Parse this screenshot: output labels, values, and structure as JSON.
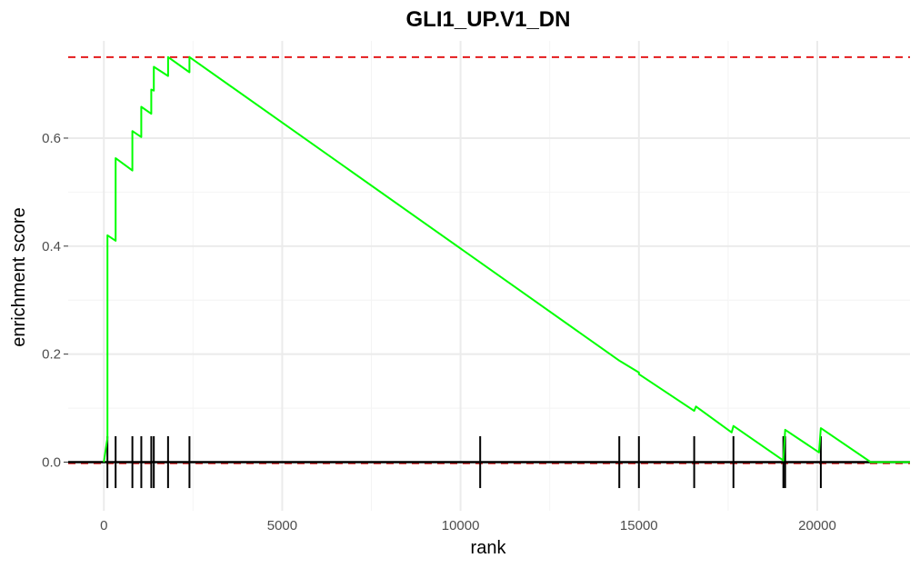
{
  "chart_data": {
    "type": "line",
    "title": "GLI1_UP.V1_DN",
    "xlabel": "rank",
    "ylabel": "enrichment score",
    "xlim": [
      -1000,
      22600
    ],
    "ylim": [
      -0.09,
      0.78
    ],
    "x_ticks": [
      0,
      5000,
      10000,
      15000,
      20000
    ],
    "x_tick_labels": [
      "0",
      "5000",
      "10000",
      "15000",
      "20000"
    ],
    "y_ticks": [
      0.0,
      0.2,
      0.4,
      0.6
    ],
    "y_tick_labels": [
      "0.0",
      "0.2",
      "0.4",
      "0.6"
    ],
    "grid": true,
    "colors": {
      "curve": "#00ff00",
      "reference_lines": "#e41a1c",
      "hits": "#000000",
      "zero_line": "#000000"
    },
    "reference_lines": {
      "max_es": 0.75,
      "min_es": -0.002
    },
    "series": [
      {
        "x": [
          0,
          100,
          100,
          330,
          330,
          800,
          800,
          1050,
          1050,
          1330,
          1330,
          1400,
          1400,
          1800,
          1800,
          2400,
          2400,
          14450,
          14500,
          15000,
          15000,
          16550,
          16600,
          17600,
          17650,
          19050,
          19100,
          20050,
          20100,
          21500,
          22600
        ],
        "y": [
          0.0,
          0.045,
          0.42,
          0.41,
          0.563,
          0.54,
          0.613,
          0.602,
          0.658,
          0.645,
          0.69,
          0.688,
          0.732,
          0.715,
          0.75,
          0.722,
          0.75,
          0.188,
          0.186,
          0.166,
          0.163,
          0.095,
          0.103,
          0.055,
          0.067,
          0.003,
          0.06,
          0.018,
          0.063,
          0.0,
          0.0
        ]
      }
    ],
    "hits": [
      100,
      330,
      800,
      1050,
      1330,
      1400,
      1800,
      2400,
      10550,
      14450,
      15000,
      16550,
      17650,
      19050,
      19100,
      20100
    ]
  }
}
